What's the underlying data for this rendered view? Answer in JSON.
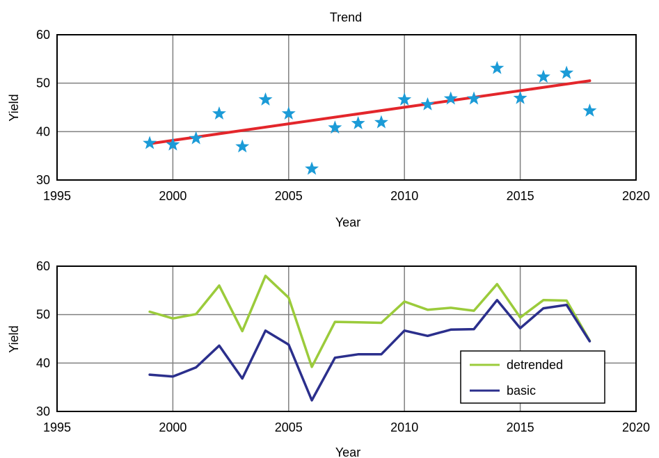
{
  "chart_data": [
    {
      "type": "scatter",
      "title": "Trend",
      "xlabel": "Year",
      "ylabel": "Yield",
      "xlim": [
        1995,
        2020
      ],
      "ylim": [
        30,
        60
      ],
      "xticks": [
        1995,
        2000,
        2005,
        2010,
        2015,
        2020
      ],
      "yticks": [
        30,
        40,
        50,
        60
      ],
      "grid": true,
      "colors": {
        "points": "#1B9BD7",
        "trend": "#E3262B"
      },
      "marker": "star",
      "series": [
        {
          "x": [
            1999,
            2000,
            2001,
            2002,
            2003,
            2004,
            2005,
            2006,
            2007,
            2008,
            2009,
            2010,
            2011,
            2012,
            2013,
            2014,
            2015,
            2016,
            2017,
            2018
          ],
          "values": [
            37.6,
            37.3,
            38.6,
            43.7,
            36.9,
            46.6,
            43.7,
            32.3,
            40.8,
            41.7,
            41.9,
            46.6,
            45.6,
            46.8,
            46.8,
            53.1,
            46.9,
            51.3,
            52.1,
            44.3
          ]
        }
      ],
      "trend_line": {
        "x": [
          1999,
          2018
        ],
        "values": [
          37.5,
          50.5
        ]
      }
    },
    {
      "type": "line",
      "title": "",
      "xlabel": "Year",
      "ylabel": "Yield",
      "xlim": [
        1995,
        2020
      ],
      "ylim": [
        30,
        60
      ],
      "xticks": [
        1995,
        2000,
        2005,
        2010,
        2015,
        2020
      ],
      "yticks": [
        30,
        40,
        50,
        60
      ],
      "grid": true,
      "legend": "bottom-right",
      "x": [
        1999,
        2000,
        2001,
        2002,
        2003,
        2004,
        2005,
        2006,
        2007,
        2008,
        2009,
        2010,
        2011,
        2012,
        2013,
        2014,
        2015,
        2016,
        2017,
        2018
      ],
      "series": [
        {
          "name": "detrended",
          "color": "#9BCB3B",
          "values": [
            50.6,
            49.2,
            50.1,
            56.0,
            46.6,
            58.0,
            53.5,
            39.2,
            48.5,
            48.4,
            48.3,
            52.7,
            51.0,
            51.4,
            50.8,
            56.3,
            49.4,
            53.0,
            52.9,
            44.6
          ]
        },
        {
          "name": "basic",
          "color": "#2B2F8C",
          "values": [
            37.6,
            37.2,
            39.1,
            43.6,
            36.8,
            46.7,
            43.8,
            32.3,
            41.1,
            41.8,
            41.8,
            46.7,
            45.6,
            46.9,
            47.0,
            53.0,
            47.2,
            51.3,
            52.0,
            44.5
          ]
        }
      ]
    }
  ]
}
